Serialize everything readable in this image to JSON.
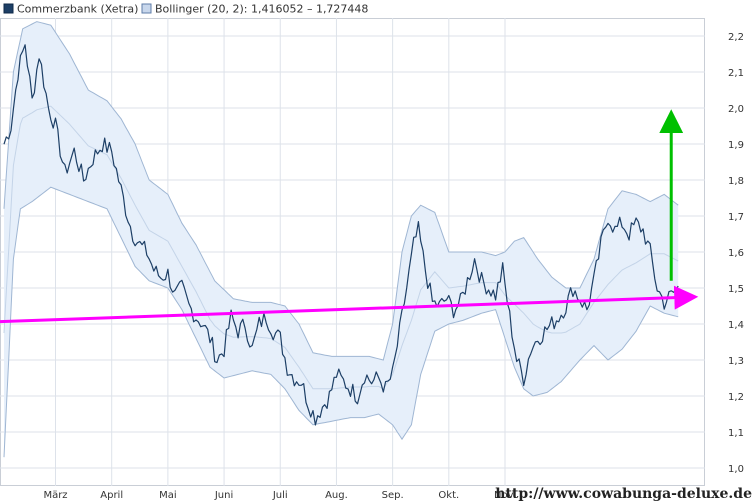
{
  "legend": {
    "series_label": "Commerzbank (Xetra)",
    "band_label": "Bollinger (20, 2): 1,416052 – 1,727448"
  },
  "watermark": "http://www.cowabunga-deluxe.de",
  "colors": {
    "price_line": "#1d3f66",
    "band_fill": "#e6effa",
    "band_line": "#9fb6d3",
    "mid_line": "#c4d4e8",
    "magenta_arrow": "#ff00ff",
    "green_arrow": "#00c000",
    "grid": "#dde2ea"
  },
  "chart_data": {
    "type": "line",
    "title": "",
    "x_labels": [
      "März",
      "April",
      "Mai",
      "Juni",
      "Juli",
      "Aug.",
      "Sep.",
      "Okt.",
      "Nov."
    ],
    "x_label_index": [
      22,
      46,
      70,
      94,
      118,
      142,
      166,
      190,
      214
    ],
    "y_ticks": [
      1.0,
      1.1,
      1.2,
      1.3,
      1.4,
      1.5,
      1.6,
      1.7,
      1.8,
      1.9,
      2.0,
      2.1,
      2.2
    ],
    "y_tick_labels": [
      "1,0",
      "1,1",
      "1,2",
      "1,3",
      "1,4",
      "1,5",
      "1,6",
      "1,7",
      "1,8",
      "1,9",
      "2,0",
      "2,1",
      "2,2"
    ],
    "ylim": [
      0.95,
      2.25
    ],
    "n_points": 300,
    "price_keys": [
      [
        0,
        1.9
      ],
      [
        3,
        1.95
      ],
      [
        6,
        2.1
      ],
      [
        9,
        2.18
      ],
      [
        12,
        2.02
      ],
      [
        15,
        2.15
      ],
      [
        19,
        2.0
      ],
      [
        22,
        1.95
      ],
      [
        26,
        1.82
      ],
      [
        30,
        1.88
      ],
      [
        34,
        1.8
      ],
      [
        38,
        1.86
      ],
      [
        42,
        1.9
      ],
      [
        46,
        1.88
      ],
      [
        49,
        1.8
      ],
      [
        52,
        1.72
      ],
      [
        55,
        1.65
      ],
      [
        58,
        1.62
      ],
      [
        61,
        1.6
      ],
      [
        64,
        1.55
      ],
      [
        67,
        1.53
      ],
      [
        70,
        1.54
      ],
      [
        73,
        1.48
      ],
      [
        76,
        1.5
      ],
      [
        79,
        1.45
      ],
      [
        82,
        1.42
      ],
      [
        85,
        1.4
      ],
      [
        88,
        1.36
      ],
      [
        91,
        1.3
      ],
      [
        94,
        1.33
      ],
      [
        97,
        1.42
      ],
      [
        100,
        1.38
      ],
      [
        103,
        1.4
      ],
      [
        106,
        1.33
      ],
      [
        109,
        1.4
      ],
      [
        112,
        1.42
      ],
      [
        115,
        1.38
      ],
      [
        118,
        1.36
      ],
      [
        121,
        1.28
      ],
      [
        124,
        1.25
      ],
      [
        127,
        1.24
      ],
      [
        130,
        1.18
      ],
      [
        133,
        1.14
      ],
      [
        136,
        1.17
      ],
      [
        139,
        1.2
      ],
      [
        142,
        1.26
      ],
      [
        145,
        1.24
      ],
      [
        148,
        1.22
      ],
      [
        151,
        1.2
      ],
      [
        154,
        1.26
      ],
      [
        157,
        1.24
      ],
      [
        160,
        1.25
      ],
      [
        163,
        1.22
      ],
      [
        166,
        1.26
      ],
      [
        169,
        1.38
      ],
      [
        172,
        1.5
      ],
      [
        175,
        1.62
      ],
      [
        177,
        1.66
      ],
      [
        180,
        1.55
      ],
      [
        183,
        1.46
      ],
      [
        186,
        1.45
      ],
      [
        189,
        1.47
      ],
      [
        192,
        1.44
      ],
      [
        195,
        1.46
      ],
      [
        198,
        1.52
      ],
      [
        201,
        1.58
      ],
      [
        204,
        1.52
      ],
      [
        207,
        1.5
      ],
      [
        210,
        1.48
      ],
      [
        213,
        1.55
      ],
      [
        216,
        1.42
      ],
      [
        219,
        1.3
      ],
      [
        222,
        1.25
      ],
      [
        225,
        1.33
      ],
      [
        228,
        1.36
      ],
      [
        231,
        1.38
      ],
      [
        234,
        1.4
      ],
      [
        237,
        1.42
      ],
      [
        240,
        1.45
      ],
      [
        243,
        1.5
      ],
      [
        246,
        1.47
      ],
      [
        249,
        1.44
      ],
      [
        252,
        1.52
      ],
      [
        255,
        1.62
      ],
      [
        258,
        1.7
      ],
      [
        261,
        1.66
      ],
      [
        264,
        1.68
      ],
      [
        267,
        1.65
      ],
      [
        270,
        1.68
      ],
      [
        273,
        1.66
      ],
      [
        276,
        1.6
      ],
      [
        279,
        1.5
      ],
      [
        282,
        1.46
      ],
      [
        285,
        1.48
      ],
      [
        288,
        1.5
      ]
    ],
    "upper_band_keys": [
      [
        0,
        1.72
      ],
      [
        4,
        2.1
      ],
      [
        8,
        2.22
      ],
      [
        14,
        2.24
      ],
      [
        20,
        2.23
      ],
      [
        28,
        2.15
      ],
      [
        36,
        2.05
      ],
      [
        44,
        2.02
      ],
      [
        50,
        1.97
      ],
      [
        56,
        1.9
      ],
      [
        62,
        1.8
      ],
      [
        70,
        1.76
      ],
      [
        76,
        1.68
      ],
      [
        82,
        1.62
      ],
      [
        90,
        1.52
      ],
      [
        98,
        1.47
      ],
      [
        106,
        1.46
      ],
      [
        114,
        1.46
      ],
      [
        120,
        1.45
      ],
      [
        126,
        1.4
      ],
      [
        132,
        1.32
      ],
      [
        140,
        1.31
      ],
      [
        148,
        1.31
      ],
      [
        156,
        1.31
      ],
      [
        162,
        1.3
      ],
      [
        166,
        1.4
      ],
      [
        170,
        1.6
      ],
      [
        174,
        1.7
      ],
      [
        178,
        1.73
      ],
      [
        184,
        1.71
      ],
      [
        190,
        1.6
      ],
      [
        196,
        1.6
      ],
      [
        204,
        1.6
      ],
      [
        210,
        1.59
      ],
      [
        214,
        1.6
      ],
      [
        218,
        1.63
      ],
      [
        222,
        1.64
      ],
      [
        228,
        1.58
      ],
      [
        234,
        1.53
      ],
      [
        240,
        1.5
      ],
      [
        246,
        1.5
      ],
      [
        252,
        1.58
      ],
      [
        258,
        1.72
      ],
      [
        264,
        1.77
      ],
      [
        270,
        1.76
      ],
      [
        276,
        1.74
      ],
      [
        282,
        1.76
      ],
      [
        288,
        1.73
      ]
    ],
    "lower_band_keys": [
      [
        0,
        1.03
      ],
      [
        2,
        1.3
      ],
      [
        4,
        1.58
      ],
      [
        7,
        1.72
      ],
      [
        12,
        1.74
      ],
      [
        20,
        1.78
      ],
      [
        28,
        1.76
      ],
      [
        36,
        1.74
      ],
      [
        44,
        1.72
      ],
      [
        50,
        1.64
      ],
      [
        56,
        1.56
      ],
      [
        62,
        1.52
      ],
      [
        70,
        1.5
      ],
      [
        76,
        1.44
      ],
      [
        82,
        1.36
      ],
      [
        88,
        1.28
      ],
      [
        94,
        1.25
      ],
      [
        100,
        1.26
      ],
      [
        106,
        1.27
      ],
      [
        114,
        1.26
      ],
      [
        120,
        1.22
      ],
      [
        126,
        1.16
      ],
      [
        132,
        1.12
      ],
      [
        140,
        1.13
      ],
      [
        148,
        1.14
      ],
      [
        154,
        1.14
      ],
      [
        160,
        1.15
      ],
      [
        166,
        1.12
      ],
      [
        170,
        1.08
      ],
      [
        174,
        1.12
      ],
      [
        178,
        1.26
      ],
      [
        184,
        1.38
      ],
      [
        190,
        1.4
      ],
      [
        196,
        1.41
      ],
      [
        204,
        1.43
      ],
      [
        210,
        1.44
      ],
      [
        214,
        1.36
      ],
      [
        218,
        1.28
      ],
      [
        222,
        1.22
      ],
      [
        226,
        1.2
      ],
      [
        232,
        1.21
      ],
      [
        238,
        1.24
      ],
      [
        246,
        1.3
      ],
      [
        252,
        1.34
      ],
      [
        258,
        1.3
      ],
      [
        264,
        1.33
      ],
      [
        270,
        1.38
      ],
      [
        276,
        1.45
      ],
      [
        282,
        1.43
      ],
      [
        288,
        1.42
      ]
    ],
    "annotations": [
      {
        "type": "arrow",
        "color": "magenta",
        "from": [
          -8,
          1.405
        ],
        "to": [
          294,
          1.475
        ]
      },
      {
        "type": "arrow",
        "color": "green",
        "from": [
          285,
          1.52
        ],
        "to": [
          285,
          1.98
        ]
      }
    ]
  }
}
